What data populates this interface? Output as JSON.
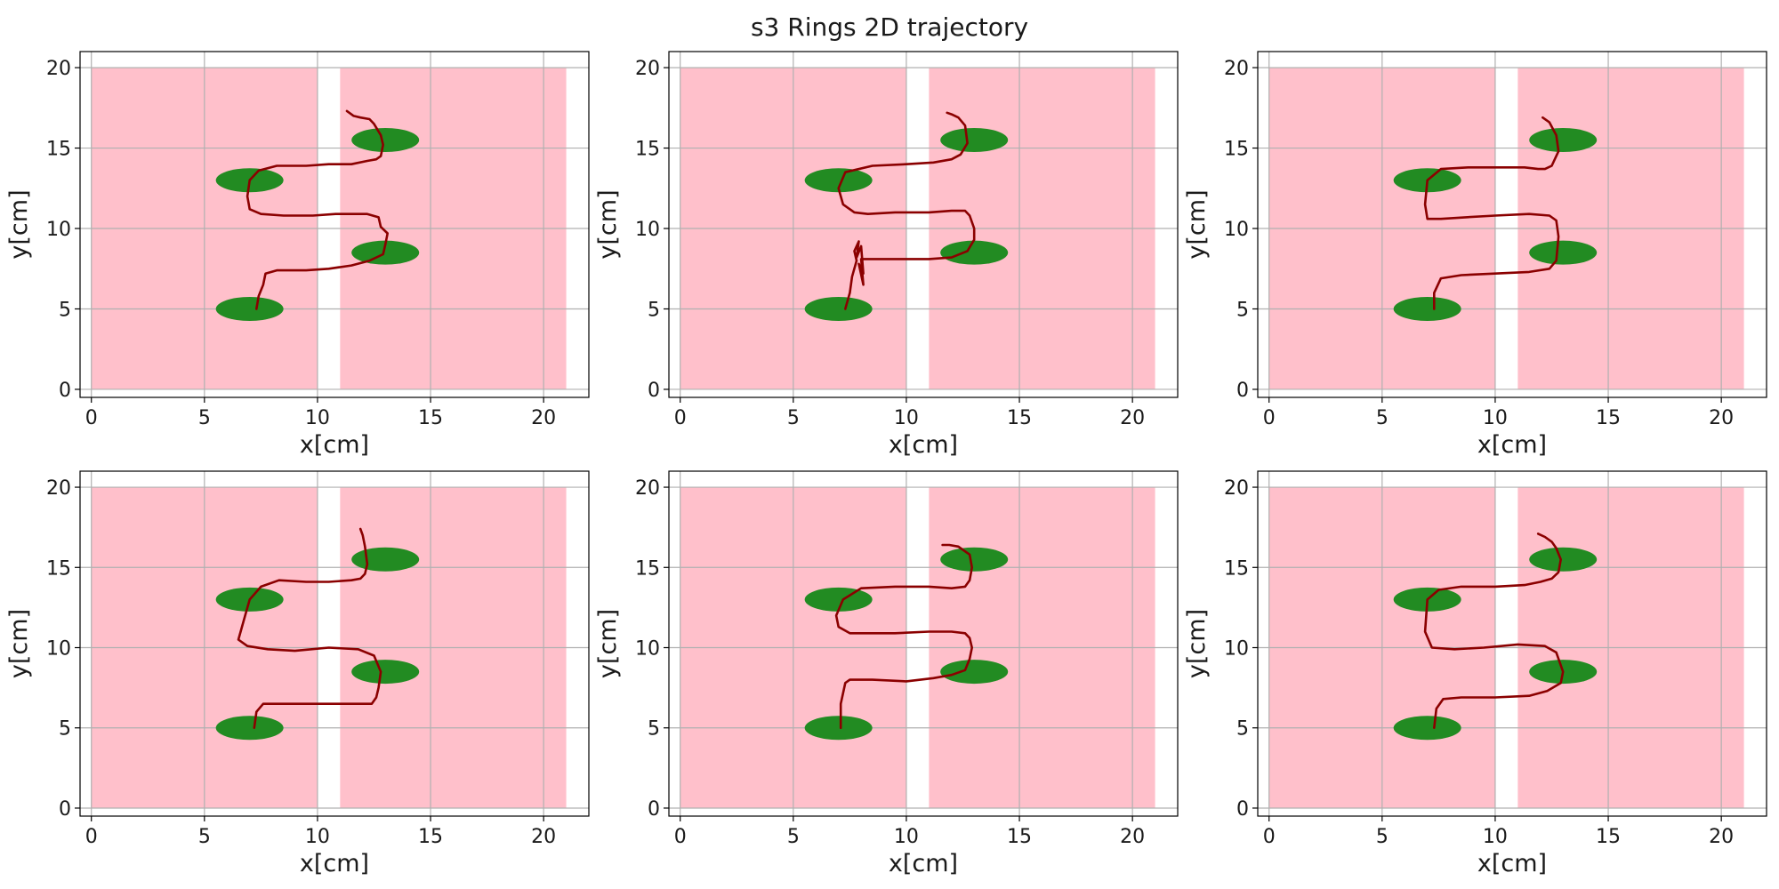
{
  "figure": {
    "title": "s3 Rings 2D trajectory"
  },
  "colors": {
    "zone": "#ffc0cb",
    "ring": "#228b22",
    "trajectory": "#8b0000",
    "grid": "#b0b0b0",
    "axes": "#000000"
  },
  "chart_data": [
    {
      "type": "scatter",
      "xlabel": "x[cm]",
      "ylabel": "y[cm]",
      "xlim": [
        -0.5,
        22
      ],
      "ylim": [
        -0.5,
        21
      ],
      "xticks": [
        0,
        5,
        10,
        15,
        20
      ],
      "yticks": [
        0,
        5,
        10,
        15,
        20
      ],
      "grid": true,
      "zones": [
        {
          "x": [
            0,
            10
          ],
          "y": [
            0,
            20
          ]
        },
        {
          "x": [
            11,
            21
          ],
          "y": [
            0,
            20
          ]
        }
      ],
      "rings": [
        {
          "x": 7,
          "y": 5
        },
        {
          "x": 13,
          "y": 8.5
        },
        {
          "x": 7,
          "y": 13
        },
        {
          "x": 13,
          "y": 15.5
        }
      ],
      "series": [
        {
          "x": [
            7.3,
            7.4,
            7.6,
            7.7,
            8.2,
            9.5,
            10.5,
            11.5,
            12.3,
            12.9,
            13.0,
            13.1,
            12.8,
            12.7,
            12.2,
            11.5,
            10.8,
            9.8,
            8.5,
            7.5,
            7.0,
            6.9,
            7.0,
            7.4,
            8.2,
            9.5,
            10.5,
            11.5,
            12.2,
            12.6,
            12.8,
            12.9,
            12.8,
            12.5,
            12.3,
            11.9,
            11.6,
            11.3
          ],
          "y": [
            5.0,
            5.8,
            6.5,
            7.2,
            7.4,
            7.4,
            7.5,
            7.7,
            8.0,
            8.4,
            9.0,
            9.7,
            10.1,
            10.7,
            10.9,
            10.9,
            10.9,
            10.8,
            10.8,
            10.9,
            11.2,
            12.0,
            13.0,
            13.6,
            13.9,
            13.9,
            14.0,
            14.0,
            14.2,
            14.3,
            14.5,
            15.2,
            15.8,
            16.5,
            16.8,
            16.9,
            17.0,
            17.3
          ]
        }
      ]
    },
    {
      "type": "scatter",
      "xlabel": "x[cm]",
      "ylabel": "y[cm]",
      "xlim": [
        -0.5,
        22
      ],
      "ylim": [
        -0.5,
        21
      ],
      "xticks": [
        0,
        5,
        10,
        15,
        20
      ],
      "yticks": [
        0,
        5,
        10,
        15,
        20
      ],
      "grid": true,
      "zones": [
        {
          "x": [
            0,
            10
          ],
          "y": [
            0,
            20
          ]
        },
        {
          "x": [
            11,
            21
          ],
          "y": [
            0,
            20
          ]
        }
      ],
      "rings": [
        {
          "x": 7,
          "y": 5
        },
        {
          "x": 13,
          "y": 8.5
        },
        {
          "x": 7,
          "y": 13
        },
        {
          "x": 13,
          "y": 15.5
        }
      ],
      "series": [
        {
          "x": [
            7.3,
            7.5,
            7.6,
            7.8,
            7.7,
            7.9,
            7.8,
            8.0,
            8.1,
            7.9,
            8.1,
            8.0,
            8.3,
            9.5,
            11.0,
            12.0,
            12.7,
            13.0,
            13.0,
            12.8,
            12.6,
            12.0,
            11.0,
            9.5,
            8.3,
            7.7,
            7.2,
            7.0,
            7.3,
            8.5,
            10.0,
            11.2,
            12.0,
            12.4,
            12.7,
            12.6,
            12.3,
            12.0,
            11.8
          ],
          "y": [
            5.0,
            6.0,
            7.0,
            8.0,
            8.6,
            9.2,
            8.2,
            8.9,
            7.2,
            7.8,
            6.5,
            8.1,
            8.1,
            8.1,
            8.1,
            8.2,
            8.6,
            9.3,
            10.0,
            10.8,
            11.1,
            11.1,
            11.0,
            11.0,
            10.9,
            11.0,
            11.5,
            12.5,
            13.5,
            13.9,
            14.0,
            14.1,
            14.3,
            14.6,
            15.3,
            16.4,
            16.9,
            17.1,
            17.2
          ]
        }
      ]
    },
    {
      "type": "scatter",
      "xlabel": "x[cm]",
      "ylabel": "y[cm]",
      "xlim": [
        -0.5,
        22
      ],
      "ylim": [
        -0.5,
        21
      ],
      "xticks": [
        0,
        5,
        10,
        15,
        20
      ],
      "yticks": [
        0,
        5,
        10,
        15,
        20
      ],
      "grid": true,
      "zones": [
        {
          "x": [
            0,
            10
          ],
          "y": [
            0,
            20
          ]
        },
        {
          "x": [
            11,
            21
          ],
          "y": [
            0,
            20
          ]
        }
      ],
      "rings": [
        {
          "x": 7,
          "y": 5
        },
        {
          "x": 13,
          "y": 8.5
        },
        {
          "x": 7,
          "y": 13
        },
        {
          "x": 13,
          "y": 15.5
        }
      ],
      "series": [
        {
          "x": [
            7.3,
            7.3,
            7.6,
            8.5,
            10.0,
            11.5,
            12.4,
            12.7,
            12.8,
            12.7,
            12.4,
            11.5,
            10.0,
            8.7,
            7.6,
            7.0,
            6.9,
            7.0,
            7.6,
            8.8,
            10.2,
            11.3,
            11.9,
            12.2,
            12.5,
            12.8,
            12.7,
            12.4,
            12.1
          ],
          "y": [
            5.0,
            6.0,
            6.9,
            7.1,
            7.2,
            7.3,
            7.5,
            8.0,
            9.5,
            10.5,
            10.8,
            10.9,
            10.8,
            10.7,
            10.6,
            10.6,
            11.5,
            13.0,
            13.7,
            13.8,
            13.8,
            13.8,
            13.7,
            13.7,
            13.9,
            14.8,
            15.8,
            16.6,
            16.9
          ]
        }
      ]
    },
    {
      "type": "scatter",
      "xlabel": "x[cm]",
      "ylabel": "y[cm]",
      "xlim": [
        -0.5,
        22
      ],
      "ylim": [
        -0.5,
        21
      ],
      "xticks": [
        0,
        5,
        10,
        15,
        20
      ],
      "yticks": [
        0,
        5,
        10,
        15,
        20
      ],
      "grid": true,
      "zones": [
        {
          "x": [
            0,
            10
          ],
          "y": [
            0,
            20
          ]
        },
        {
          "x": [
            11,
            21
          ],
          "y": [
            0,
            20
          ]
        }
      ],
      "rings": [
        {
          "x": 7,
          "y": 5
        },
        {
          "x": 13,
          "y": 8.5
        },
        {
          "x": 7,
          "y": 13
        },
        {
          "x": 13,
          "y": 15.5
        }
      ],
      "series": [
        {
          "x": [
            7.2,
            7.3,
            7.6,
            8.5,
            10.0,
            11.5,
            12.4,
            12.6,
            12.7,
            12.8,
            12.5,
            11.8,
            10.5,
            9.0,
            7.8,
            6.9,
            6.5,
            6.8,
            7.0,
            7.5,
            8.3,
            9.5,
            10.5,
            11.5,
            11.9,
            12.1,
            12.2,
            12.1,
            12.0,
            11.9
          ],
          "y": [
            5.0,
            6.0,
            6.5,
            6.5,
            6.5,
            6.5,
            6.5,
            6.9,
            7.5,
            8.5,
            9.5,
            9.9,
            10.0,
            9.8,
            9.9,
            10.1,
            10.5,
            12.0,
            13.0,
            13.8,
            14.2,
            14.1,
            14.1,
            14.2,
            14.3,
            14.6,
            15.2,
            16.3,
            17.0,
            17.4
          ]
        }
      ]
    },
    {
      "type": "scatter",
      "xlabel": "x[cm]",
      "ylabel": "y[cm]",
      "xlim": [
        -0.5,
        22
      ],
      "ylim": [
        -0.5,
        21
      ],
      "xticks": [
        0,
        5,
        10,
        15,
        20
      ],
      "yticks": [
        0,
        5,
        10,
        15,
        20
      ],
      "grid": true,
      "zones": [
        {
          "x": [
            0,
            10
          ],
          "y": [
            0,
            20
          ]
        },
        {
          "x": [
            11,
            21
          ],
          "y": [
            0,
            20
          ]
        }
      ],
      "rings": [
        {
          "x": 7,
          "y": 5
        },
        {
          "x": 13,
          "y": 8.5
        },
        {
          "x": 7,
          "y": 13
        },
        {
          "x": 13,
          "y": 15.5
        }
      ],
      "series": [
        {
          "x": [
            7.1,
            7.1,
            7.3,
            7.5,
            8.5,
            10.0,
            11.2,
            12.0,
            12.6,
            12.8,
            12.9,
            12.8,
            12.6,
            12.0,
            11.0,
            9.5,
            8.3,
            7.5,
            7.0,
            6.9,
            7.2,
            8.0,
            9.5,
            11.0,
            12.0,
            12.6,
            12.8,
            12.9,
            12.8,
            12.5,
            12.3,
            11.9,
            11.6
          ],
          "y": [
            5.0,
            6.5,
            7.8,
            8.0,
            8.0,
            7.9,
            8.1,
            8.3,
            8.6,
            9.3,
            10.0,
            10.6,
            10.9,
            11.0,
            11.0,
            10.9,
            10.9,
            10.9,
            11.3,
            12.0,
            13.0,
            13.7,
            13.8,
            13.8,
            13.7,
            13.8,
            14.2,
            15.0,
            15.8,
            16.1,
            16.3,
            16.4,
            16.4
          ]
        }
      ]
    },
    {
      "type": "scatter",
      "xlabel": "x[cm]",
      "ylabel": "y[cm]",
      "xlim": [
        -0.5,
        22
      ],
      "ylim": [
        -0.5,
        21
      ],
      "xticks": [
        0,
        5,
        10,
        15,
        20
      ],
      "yticks": [
        0,
        5,
        10,
        15,
        20
      ],
      "grid": true,
      "zones": [
        {
          "x": [
            0,
            10
          ],
          "y": [
            0,
            20
          ]
        },
        {
          "x": [
            11,
            21
          ],
          "y": [
            0,
            20
          ]
        }
      ],
      "rings": [
        {
          "x": 7,
          "y": 5
        },
        {
          "x": 13,
          "y": 8.5
        },
        {
          "x": 7,
          "y": 13
        },
        {
          "x": 13,
          "y": 15.5
        }
      ],
      "series": [
        {
          "x": [
            7.3,
            7.4,
            7.7,
            8.5,
            10.0,
            11.5,
            12.3,
            12.9,
            13.0,
            12.7,
            12.2,
            11.0,
            9.5,
            8.2,
            7.2,
            6.9,
            7.0,
            7.5,
            8.5,
            10.0,
            11.3,
            12.0,
            12.5,
            12.8,
            12.9,
            12.7,
            12.5,
            12.2,
            11.9
          ],
          "y": [
            5.0,
            6.2,
            6.8,
            6.9,
            6.9,
            7.0,
            7.3,
            7.8,
            8.5,
            9.7,
            10.1,
            10.2,
            10.0,
            9.9,
            10.0,
            11.0,
            13.0,
            13.6,
            13.8,
            13.8,
            13.9,
            14.1,
            14.3,
            14.7,
            15.5,
            16.2,
            16.6,
            16.9,
            17.1
          ]
        }
      ]
    }
  ]
}
